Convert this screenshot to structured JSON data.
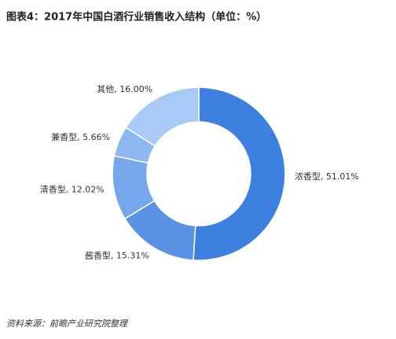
{
  "chart_data": {
    "type": "donut",
    "title": "图表4：2017年中国白酒行业销售收入结构（单位：%）",
    "values": [
      51.01,
      15.31,
      12.02,
      5.66,
      16.0
    ],
    "value_labels": [
      "浓香型, 51.01%",
      "酱香型, 15.31%",
      "清香型, 12.02%",
      "兼香型, 5.66%",
      "其他, 16.00%"
    ],
    "colors": [
      "#3d80e0",
      "#5a92e6",
      "#77a6ec",
      "#8fb7f1",
      "#a9c9f6"
    ],
    "source": "资料来源：前瞻产业研究院整理"
  }
}
